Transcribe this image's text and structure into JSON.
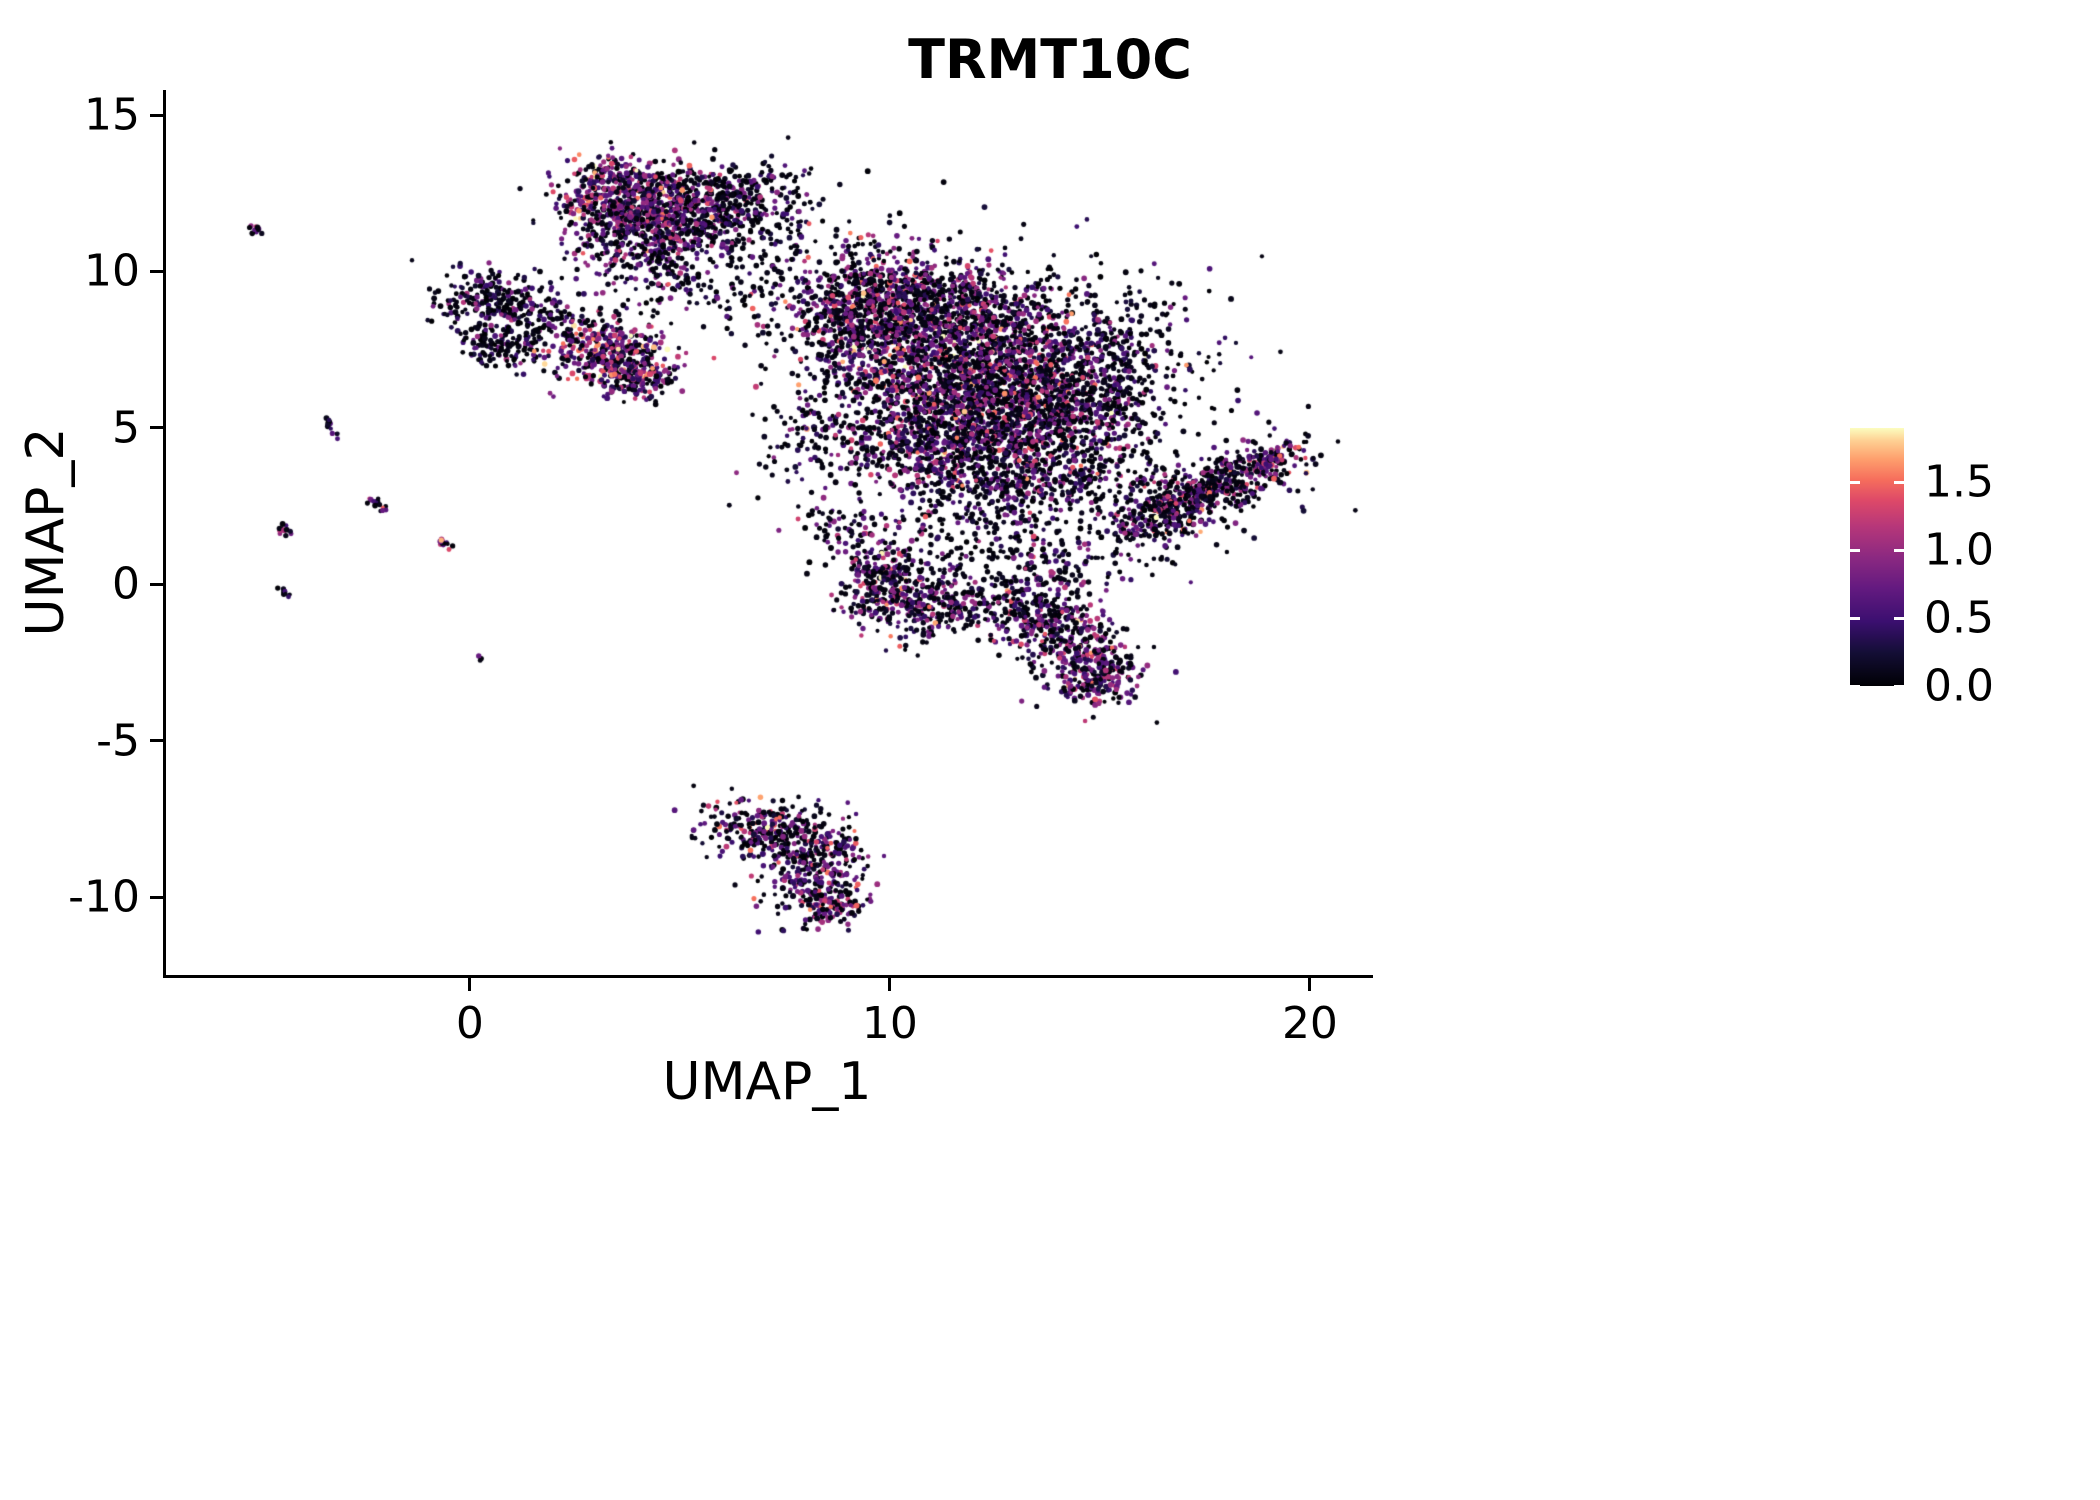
{
  "figure": {
    "title": "TRMT10C",
    "xlabel": "UMAP_1",
    "ylabel": "UMAP_2"
  },
  "chart_data": {
    "type": "scatter",
    "title": "TRMT10C",
    "xlabel": "UMAP_1",
    "ylabel": "UMAP_2",
    "xlim": [
      -7.26,
      21.43
    ],
    "ylim": [
      -12.49,
      15.8
    ],
    "xticks": [
      0,
      10,
      20
    ],
    "yticks": [
      15,
      10,
      5,
      0,
      -5,
      -10
    ],
    "grid": false,
    "point_radius": 2.5,
    "seed": 421,
    "legend": {
      "position": "right",
      "title": "",
      "min": 0.0,
      "max": 1.9,
      "ticks": [
        {
          "value": 1.5,
          "label": "1.5"
        },
        {
          "value": 1.0,
          "label": "1.0"
        },
        {
          "value": 0.5,
          "label": "0.5"
        },
        {
          "value": 0.0,
          "label": "0.0"
        }
      ]
    },
    "colormap_name": "magma",
    "colormap": [
      {
        "t": 0.0,
        "c": "#000004"
      },
      {
        "t": 0.13,
        "c": "#140e36"
      },
      {
        "t": 0.25,
        "c": "#3b0f70"
      },
      {
        "t": 0.38,
        "c": "#641a80"
      },
      {
        "t": 0.5,
        "c": "#8c2981"
      },
      {
        "t": 0.62,
        "c": "#b73779"
      },
      {
        "t": 0.72,
        "c": "#de4968"
      },
      {
        "t": 0.8,
        "c": "#f66e5c"
      },
      {
        "t": 0.88,
        "c": "#fe9f6d"
      },
      {
        "t": 0.95,
        "c": "#fecf92"
      },
      {
        "t": 1.0,
        "c": "#fcfdbf"
      }
    ],
    "clusters": [
      {
        "cx": -5.1,
        "cy": 11.35,
        "sx": 0.12,
        "sy": 0.05,
        "angle": -55,
        "n": 10,
        "p0": 0.3,
        "mean": 0.5,
        "sd": 0.3
      },
      {
        "cx": -3.35,
        "cy": 5.15,
        "sx": 0.18,
        "sy": 0.06,
        "angle": -55,
        "n": 14,
        "p0": 0.35,
        "mean": 0.45,
        "sd": 0.3
      },
      {
        "cx": -2.2,
        "cy": 2.55,
        "sx": 0.18,
        "sy": 0.07,
        "angle": -55,
        "n": 14,
        "p0": 0.3,
        "mean": 0.7,
        "sd": 0.45
      },
      {
        "cx": -4.45,
        "cy": 1.75,
        "sx": 0.16,
        "sy": 0.06,
        "angle": -55,
        "n": 12,
        "p0": 0.35,
        "mean": 0.6,
        "sd": 0.4
      },
      {
        "cx": -0.68,
        "cy": 1.35,
        "sx": 0.16,
        "sy": 0.07,
        "angle": -50,
        "n": 14,
        "p0": 0.3,
        "mean": 0.7,
        "sd": 0.45
      },
      {
        "cx": -4.4,
        "cy": -0.25,
        "sx": 0.1,
        "sy": 0.05,
        "angle": -55,
        "n": 8,
        "p0": 0.4,
        "mean": 0.45,
        "sd": 0.3
      },
      {
        "cx": 0.28,
        "cy": -2.35,
        "sx": 0.06,
        "sy": 0.05,
        "angle": 0,
        "n": 3,
        "p0": 0.4,
        "mean": 0.4,
        "sd": 0.3
      },
      {
        "cx": 3.6,
        "cy": 12.35,
        "sx": 0.8,
        "sy": 0.62,
        "angle": -10,
        "n": 520,
        "p0": 0.26,
        "mean": 0.78,
        "sd": 0.45
      },
      {
        "cx": 5.3,
        "cy": 12.2,
        "sx": 0.9,
        "sy": 0.6,
        "angle": 5,
        "n": 450,
        "p0": 0.34,
        "mean": 0.65,
        "sd": 0.42
      },
      {
        "cx": 4.3,
        "cy": 11.05,
        "sx": 0.9,
        "sy": 0.5,
        "angle": 0,
        "n": 300,
        "p0": 0.35,
        "mean": 0.6,
        "sd": 0.4
      },
      {
        "cx": 4.3,
        "cy": 9.9,
        "sx": 0.8,
        "sy": 0.55,
        "angle": 0,
        "n": 90,
        "p0": 0.45,
        "mean": 0.5,
        "sd": 0.35
      },
      {
        "cx": 6.6,
        "cy": 11.7,
        "sx": 0.7,
        "sy": 0.9,
        "angle": 0,
        "n": 110,
        "p0": 0.6,
        "mean": 0.35,
        "sd": 0.3
      },
      {
        "cx": 0.55,
        "cy": 9.1,
        "sx": 0.75,
        "sy": 0.45,
        "angle": 0,
        "n": 230,
        "p0": 0.5,
        "mean": 0.45,
        "sd": 0.35
      },
      {
        "cx": 0.9,
        "cy": 7.7,
        "sx": 0.55,
        "sy": 0.42,
        "angle": 0,
        "n": 150,
        "p0": 0.5,
        "mean": 0.45,
        "sd": 0.35
      },
      {
        "cx": 1.8,
        "cy": 8.4,
        "sx": 0.5,
        "sy": 0.5,
        "angle": 0,
        "n": 60,
        "p0": 0.52,
        "mean": 0.4,
        "sd": 0.3
      },
      {
        "cx": 3.4,
        "cy": 7.35,
        "sx": 0.78,
        "sy": 0.6,
        "angle": -20,
        "n": 430,
        "p0": 0.2,
        "mean": 0.88,
        "sd": 0.5
      },
      {
        "cx": 3.95,
        "cy": 6.6,
        "sx": 0.5,
        "sy": 0.3,
        "angle": 0,
        "n": 90,
        "p0": 0.3,
        "mean": 0.7,
        "sd": 0.4
      },
      {
        "cx": 6.3,
        "cy": 10.3,
        "sx": 1.0,
        "sy": 1.3,
        "angle": 0,
        "n": 130,
        "p0": 0.62,
        "mean": 0.3,
        "sd": 0.3
      },
      {
        "cx": 7.3,
        "cy": 12.6,
        "sx": 0.6,
        "sy": 0.6,
        "angle": 0,
        "n": 60,
        "p0": 0.6,
        "mean": 0.35,
        "sd": 0.3
      },
      {
        "cx": 9.4,
        "cy": 8.7,
        "sx": 1.0,
        "sy": 1.0,
        "angle": 0,
        "n": 820,
        "p0": 0.36,
        "mean": 0.68,
        "sd": 0.44
      },
      {
        "cx": 11.8,
        "cy": 7.0,
        "sx": 1.5,
        "sy": 1.3,
        "angle": 0,
        "n": 1400,
        "p0": 0.35,
        "mean": 0.7,
        "sd": 0.46
      },
      {
        "cx": 13.6,
        "cy": 5.6,
        "sx": 1.2,
        "sy": 1.1,
        "angle": 0,
        "n": 900,
        "p0": 0.42,
        "mean": 0.6,
        "sd": 0.43
      },
      {
        "cx": 10.9,
        "cy": 4.6,
        "sx": 1.3,
        "sy": 0.95,
        "angle": 0,
        "n": 620,
        "p0": 0.4,
        "mean": 0.62,
        "sd": 0.42
      },
      {
        "cx": 12.3,
        "cy": 6.4,
        "sx": 2.5,
        "sy": 2.3,
        "angle": 0,
        "n": 700,
        "p0": 0.62,
        "mean": 0.3,
        "sd": 0.3
      },
      {
        "cx": 15.3,
        "cy": 7.2,
        "sx": 0.8,
        "sy": 1.2,
        "angle": 0,
        "n": 260,
        "p0": 0.55,
        "mean": 0.45,
        "sd": 0.35
      },
      {
        "cx": 11.3,
        "cy": 9.3,
        "sx": 1.2,
        "sy": 0.55,
        "angle": -15,
        "n": 300,
        "p0": 0.4,
        "mean": 0.6,
        "sd": 0.4
      },
      {
        "cx": 12.6,
        "cy": 2.9,
        "sx": 1.0,
        "sy": 0.7,
        "angle": 0,
        "n": 230,
        "p0": 0.45,
        "mean": 0.55,
        "sd": 0.4
      },
      {
        "cx": 14.6,
        "cy": 3.6,
        "sx": 0.7,
        "sy": 0.6,
        "angle": 0,
        "n": 150,
        "p0": 0.45,
        "mean": 0.5,
        "sd": 0.4
      },
      {
        "cx": 8.2,
        "cy": 4.9,
        "sx": 0.7,
        "sy": 0.7,
        "angle": 0,
        "n": 60,
        "p0": 0.5,
        "mean": 0.45,
        "sd": 0.35
      },
      {
        "cx": 9.0,
        "cy": 1.9,
        "sx": 0.7,
        "sy": 0.5,
        "angle": 0,
        "n": 70,
        "p0": 0.45,
        "mean": 0.5,
        "sd": 0.38
      },
      {
        "cx": 17.2,
        "cy": 2.8,
        "sx": 1.3,
        "sy": 0.42,
        "angle": 33,
        "n": 660,
        "p0": 0.42,
        "mean": 0.6,
        "sd": 0.43
      },
      {
        "cx": 19.2,
        "cy": 4.0,
        "sx": 0.3,
        "sy": 0.25,
        "angle": 30,
        "n": 60,
        "p0": 0.3,
        "mean": 0.8,
        "sd": 0.5
      },
      {
        "cx": 16.8,
        "cy": 2.3,
        "sx": 1.6,
        "sy": 0.8,
        "angle": 30,
        "n": 120,
        "p0": 0.6,
        "mean": 0.3,
        "sd": 0.3
      },
      {
        "cx": 9.8,
        "cy": 0.1,
        "sx": 0.55,
        "sy": 0.7,
        "angle": 0,
        "n": 260,
        "p0": 0.34,
        "mean": 0.7,
        "sd": 0.46
      },
      {
        "cx": 10.8,
        "cy": -0.7,
        "sx": 0.6,
        "sy": 0.55,
        "angle": 0,
        "n": 200,
        "p0": 0.38,
        "mean": 0.65,
        "sd": 0.43
      },
      {
        "cx": 12.2,
        "cy": 0.9,
        "sx": 1.5,
        "sy": 0.8,
        "angle": 0,
        "n": 150,
        "p0": 0.55,
        "mean": 0.4,
        "sd": 0.35
      },
      {
        "cx": 12.3,
        "cy": -0.9,
        "sx": 0.9,
        "sy": 0.5,
        "angle": 0,
        "n": 90,
        "p0": 0.45,
        "mean": 0.55,
        "sd": 0.4
      },
      {
        "cx": 13.8,
        "cy": 0.3,
        "sx": 0.6,
        "sy": 0.5,
        "angle": 0,
        "n": 80,
        "p0": 0.5,
        "mean": 0.5,
        "sd": 0.38
      },
      {
        "cx": 13.6,
        "cy": -1.2,
        "sx": 0.8,
        "sy": 0.5,
        "angle": -25,
        "n": 260,
        "p0": 0.4,
        "mean": 0.6,
        "sd": 0.43
      },
      {
        "cx": 14.7,
        "cy": -2.4,
        "sx": 0.7,
        "sy": 0.6,
        "angle": -30,
        "n": 260,
        "p0": 0.34,
        "mean": 0.68,
        "sd": 0.46
      },
      {
        "cx": 15.0,
        "cy": -3.3,
        "sx": 0.4,
        "sy": 0.3,
        "angle": 0,
        "n": 80,
        "p0": 0.3,
        "mean": 0.75,
        "sd": 0.46
      },
      {
        "cx": 7.1,
        "cy": -7.9,
        "sx": 0.85,
        "sy": 0.5,
        "angle": -15,
        "n": 310,
        "p0": 0.4,
        "mean": 0.6,
        "sd": 0.46
      },
      {
        "cx": 8.3,
        "cy": -9.2,
        "sx": 0.6,
        "sy": 0.75,
        "angle": -20,
        "n": 280,
        "p0": 0.38,
        "mean": 0.65,
        "sd": 0.46
      },
      {
        "cx": 8.7,
        "cy": -10.2,
        "sx": 0.35,
        "sy": 0.35,
        "angle": 0,
        "n": 90,
        "p0": 0.3,
        "mean": 0.75,
        "sd": 0.5
      }
    ]
  }
}
